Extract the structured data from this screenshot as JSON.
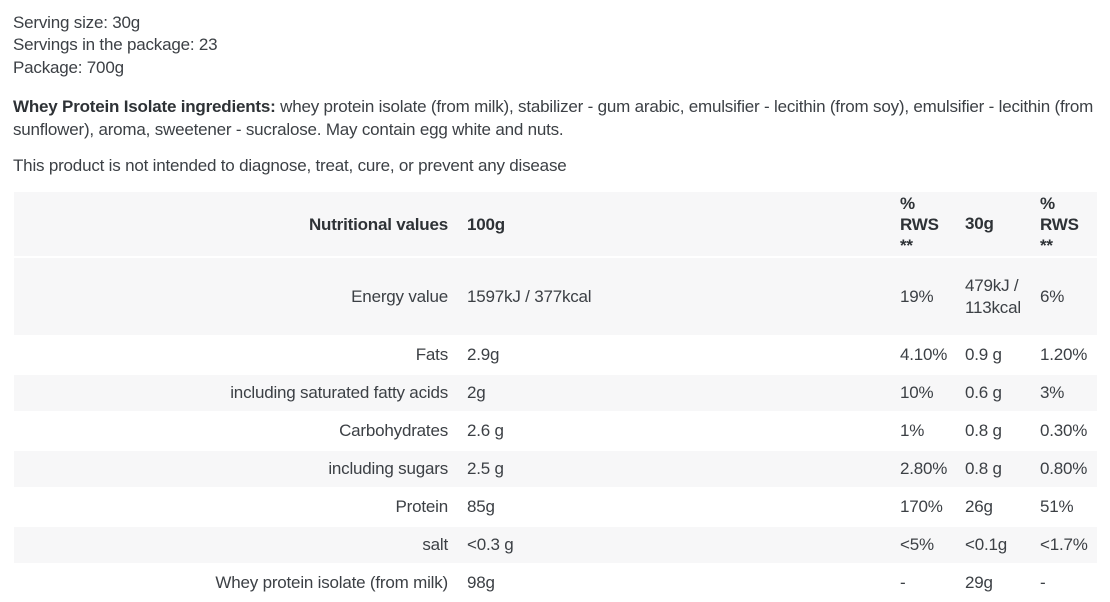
{
  "product_info": {
    "serving_size": "Serving size: 30g",
    "servings_in_package": "Servings in the package: 23",
    "package": "Package: 700g"
  },
  "ingredients": {
    "lead": "Whey Protein Isolate ingredients:",
    "text": " whey protein isolate (from milk), stabilizer - gum arabic, emulsifier - lecithin (from soy), emulsifier - lecithin (from sunflower), aroma, sweetener - sucralose. May contain egg white and nuts."
  },
  "disclaimer": "This product is not intended to diagnose, treat, cure, or prevent any disease",
  "nutrition_table": {
    "headers": {
      "name": "Nutritional values",
      "per_100g": "100g",
      "rws_100g": "%\nRWS\n**",
      "per_30g": "30g",
      "rws_30g": "%\nRWS\n**"
    },
    "rows": [
      {
        "name": "Energy value",
        "per_100g": "1597kJ / 377kcal",
        "rws_100g": "19%",
        "per_30g": "479kJ / 113kcal",
        "rws_30g": "6%"
      },
      {
        "name": "Fats",
        "per_100g": "2.9g",
        "rws_100g": "4.10%",
        "per_30g": "0.9 g",
        "rws_30g": "1.20%"
      },
      {
        "name": "including saturated fatty acids",
        "per_100g": "2g",
        "rws_100g": "10%",
        "per_30g": "0.6 g",
        "rws_30g": "3%"
      },
      {
        "name": "Carbohydrates",
        "per_100g": "2.6 g",
        "rws_100g": "1%",
        "per_30g": "0.8 g",
        "rws_30g": "0.30%"
      },
      {
        "name": "including sugars",
        "per_100g": "2.5 g",
        "rws_100g": "2.80%",
        "per_30g": "0.8 g",
        "rws_30g": "0.80%"
      },
      {
        "name": "Protein",
        "per_100g": "85g",
        "rws_100g": "170%",
        "per_30g": "26g",
        "rws_30g": "51%"
      },
      {
        "name": "salt",
        "per_100g": "<0.3 g",
        "rws_100g": "<5%",
        "per_30g": "<0.1g",
        "rws_30g": "<1.7%"
      },
      {
        "name": "Whey protein isolate (from milk)",
        "per_100g": "98g",
        "rws_100g": "-",
        "per_30g": "29g",
        "rws_30g": "-"
      }
    ]
  },
  "colors": {
    "row_stripe": "#f7f7f8",
    "body_text": "#3c4045",
    "bold_text": "#2e3236",
    "background": "#ffffff"
  }
}
